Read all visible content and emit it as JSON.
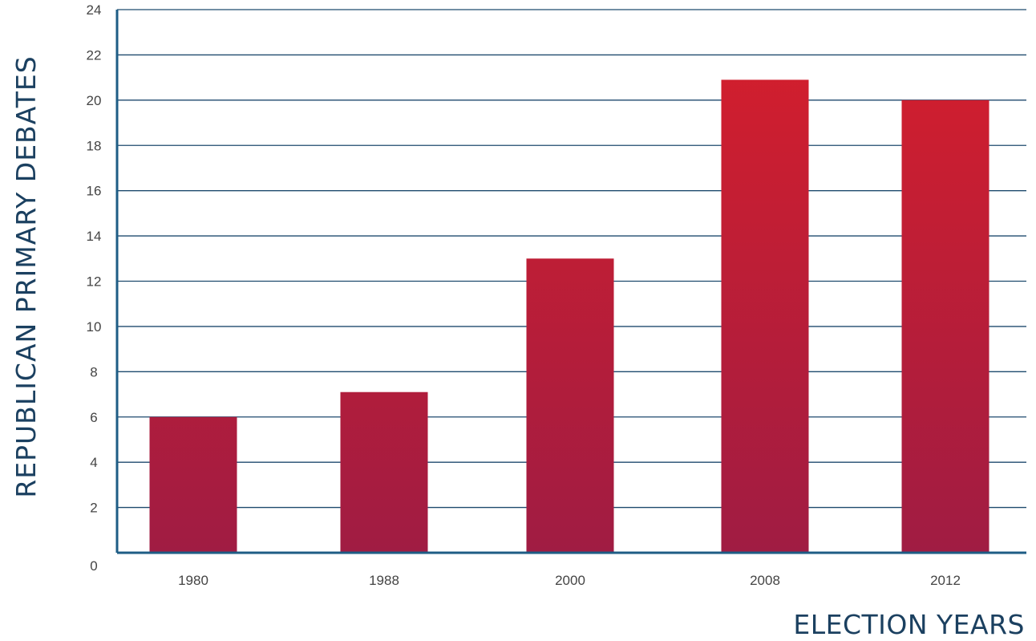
{
  "chart_data": {
    "type": "bar",
    "categories": [
      "1980",
      "1988",
      "2000",
      "2008",
      "2012"
    ],
    "values": [
      6,
      7.1,
      13,
      20.9,
      20
    ],
    "title": "",
    "xlabel": "ELECTION YEARS",
    "ylabel": "REPUBLICAN PRIMARY DEBATES",
    "ylim": [
      0,
      24
    ],
    "yticks": [
      "0",
      "2",
      "4",
      "6",
      "8",
      "10",
      "12",
      "14",
      "16",
      "18",
      "20",
      "22",
      "24"
    ],
    "grid": true,
    "legend": "none",
    "colors": {
      "bar_top": "#d71f2b",
      "bar_bottom": "#a01c43",
      "axis": "#1e5d85",
      "grid": "#1e4a6e"
    }
  }
}
